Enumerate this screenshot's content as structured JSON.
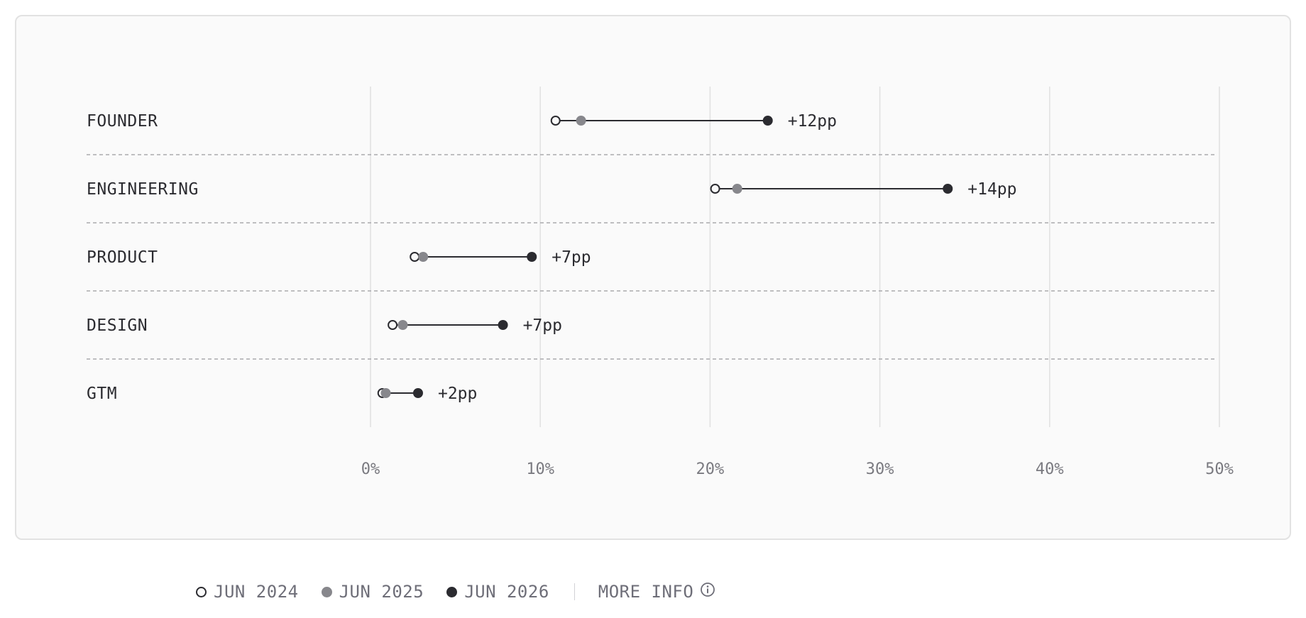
{
  "chart_data": {
    "type": "dumbbell",
    "series": [
      {
        "name": "JUN 2024",
        "style": "open",
        "color": "#2b2b30"
      },
      {
        "name": "JUN 2025",
        "style": "filled",
        "color": "#87878c"
      },
      {
        "name": "JUN 2026",
        "style": "filled",
        "color": "#2b2b30"
      }
    ],
    "categories": [
      "FOUNDER",
      "ENGINEERING",
      "PRODUCT",
      "DESIGN",
      "GTM"
    ],
    "rows": [
      {
        "label": "FOUNDER",
        "values": [
          10.9,
          12.4,
          23.4
        ],
        "delta": "+12pp"
      },
      {
        "label": "ENGINEERING",
        "values": [
          20.3,
          21.6,
          34.0
        ],
        "delta": "+14pp"
      },
      {
        "label": "PRODUCT",
        "values": [
          2.6,
          3.1,
          9.5
        ],
        "delta": "+7pp"
      },
      {
        "label": "DESIGN",
        "values": [
          1.3,
          1.9,
          7.8
        ],
        "delta": "+7pp"
      },
      {
        "label": "GTM",
        "values": [
          0.7,
          0.9,
          2.8
        ],
        "delta": "+2pp"
      }
    ],
    "x_ticks": [
      "0%",
      "10%",
      "20%",
      "30%",
      "40%",
      "50%"
    ],
    "xlim": [
      0,
      50
    ],
    "x_unit": "%",
    "grid": true
  },
  "legend": {
    "items": [
      "JUN 2024",
      "JUN 2025",
      "JUN 2026"
    ],
    "more_info": "MORE INFO"
  },
  "colors": {
    "dark": "#2b2b30",
    "mid": "#87878c",
    "grid": "#e0e0e0",
    "divider": "#a9a9ad",
    "tick_text": "#7a7a80"
  }
}
